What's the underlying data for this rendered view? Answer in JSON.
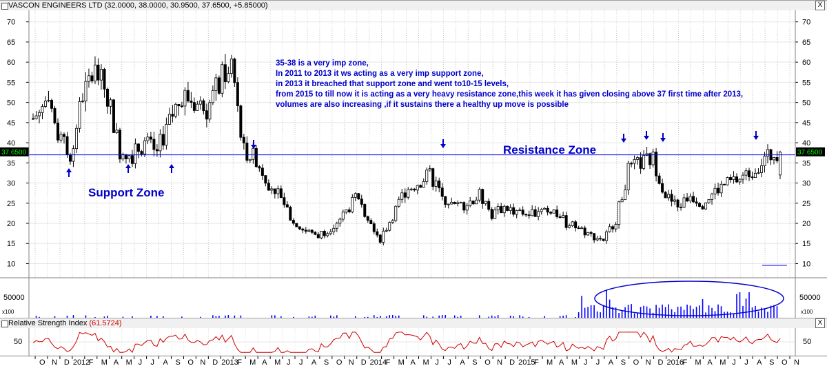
{
  "price_window": {
    "title": "VASCON ENGINEERS LTD",
    "ohlc": "(32.0000, 38.0000, 30.9500, 37.6500, +5.85000)",
    "last_price_tag": "37.6500",
    "close_label": "X"
  },
  "annotation": {
    "lines": [
      "35-38 is a very imp zone,",
      "In 2011 to 2013 it ws acting as a very imp support  zone,",
      "in 2013 it breached that support zone and went to10-15 levels,",
      "from 2015 to till now it is acting as a very heavy resistance zone,this week it has given closing above 37 first time after 2013,",
      "volumes are also increasing ,if it sustains there a healthy up move is possible"
    ],
    "resistance_label": "Resistance Zone",
    "support_label": "Support Zone",
    "color": "#0000cc"
  },
  "volume_panel": {
    "tick_label": "50000",
    "multiplier": "x100"
  },
  "rsi_window": {
    "title": "Relative Strength Index",
    "value": "(61.5724)",
    "tick_label": "50",
    "value_color": "#cc0000",
    "close_label": "X"
  },
  "time_axis": {
    "labels": [
      "O",
      "N",
      "D",
      "2012",
      "F",
      "M",
      "A",
      "M",
      "J",
      "J",
      "A",
      "S",
      "O",
      "N",
      "D",
      "2013",
      "F",
      "M",
      "A",
      "M",
      "J",
      "J",
      "A",
      "S",
      "O",
      "N",
      "D",
      "2014",
      "F",
      "M",
      "A",
      "M",
      "J",
      "J",
      "A",
      "S",
      "O",
      "N",
      "D",
      "2015",
      "F",
      "M",
      "A",
      "M",
      "J",
      "J",
      "A",
      "S",
      "O",
      "N",
      "D",
      "2016",
      "F",
      "M",
      "A",
      "M",
      "J",
      "J",
      "A",
      "S",
      "O",
      "N"
    ]
  },
  "chart_data": [
    {
      "type": "candlestick",
      "series_name": "VASCON ENGINEERS LTD",
      "x": [
        "2011-10",
        "2011-11",
        "2011-12",
        "2012-01",
        "2012-02",
        "2012-03",
        "2012-04",
        "2012-05",
        "2012-06",
        "2012-07",
        "2012-08",
        "2012-09",
        "2012-10",
        "2012-11",
        "2012-12",
        "2013-01",
        "2013-02",
        "2013-03",
        "2013-04",
        "2013-05",
        "2013-06",
        "2013-07",
        "2013-08",
        "2013-09",
        "2013-10",
        "2013-11",
        "2013-12",
        "2014-01",
        "2014-02",
        "2014-03",
        "2014-04",
        "2014-05",
        "2014-06",
        "2014-07",
        "2014-08",
        "2014-09",
        "2014-10",
        "2014-11",
        "2014-12",
        "2015-01",
        "2015-02",
        "2015-03",
        "2015-04",
        "2015-05",
        "2015-06",
        "2015-07",
        "2015-08",
        "2015-09",
        "2015-10",
        "2015-11",
        "2015-12",
        "2016-01",
        "2016-02",
        "2016-03",
        "2016-04",
        "2016-05",
        "2016-06",
        "2016-07",
        "2016-08",
        "2016-09",
        "2016-10"
      ],
      "close": [
        46,
        50,
        42,
        37,
        52,
        58,
        52,
        38,
        37,
        40,
        38,
        45,
        52,
        50,
        48,
        55,
        60,
        38,
        36,
        30,
        27,
        20,
        18,
        17,
        19,
        22,
        26,
        22,
        16,
        22,
        28,
        30,
        32,
        27,
        24,
        25,
        27,
        22,
        24,
        23,
        22,
        24,
        23,
        20,
        19,
        17,
        16,
        21,
        33,
        35,
        36,
        27,
        24,
        27,
        25,
        28,
        30,
        31,
        33,
        36,
        37.65
      ],
      "yaxis_ticks": [
        10,
        15,
        20,
        25,
        30,
        35,
        40,
        45,
        50,
        55,
        60,
        65,
        70
      ],
      "ylim": [
        7,
        72
      ],
      "last_value": 37.65,
      "resistance_level": 37
    },
    {
      "type": "bar",
      "series_name": "Volume",
      "yaxis_ticks": [
        50000
      ],
      "multiplier": "x100"
    },
    {
      "type": "line",
      "series_name": "Relative Strength Index",
      "last_value": 61.5724,
      "yaxis_ticks": [
        50
      ]
    }
  ]
}
